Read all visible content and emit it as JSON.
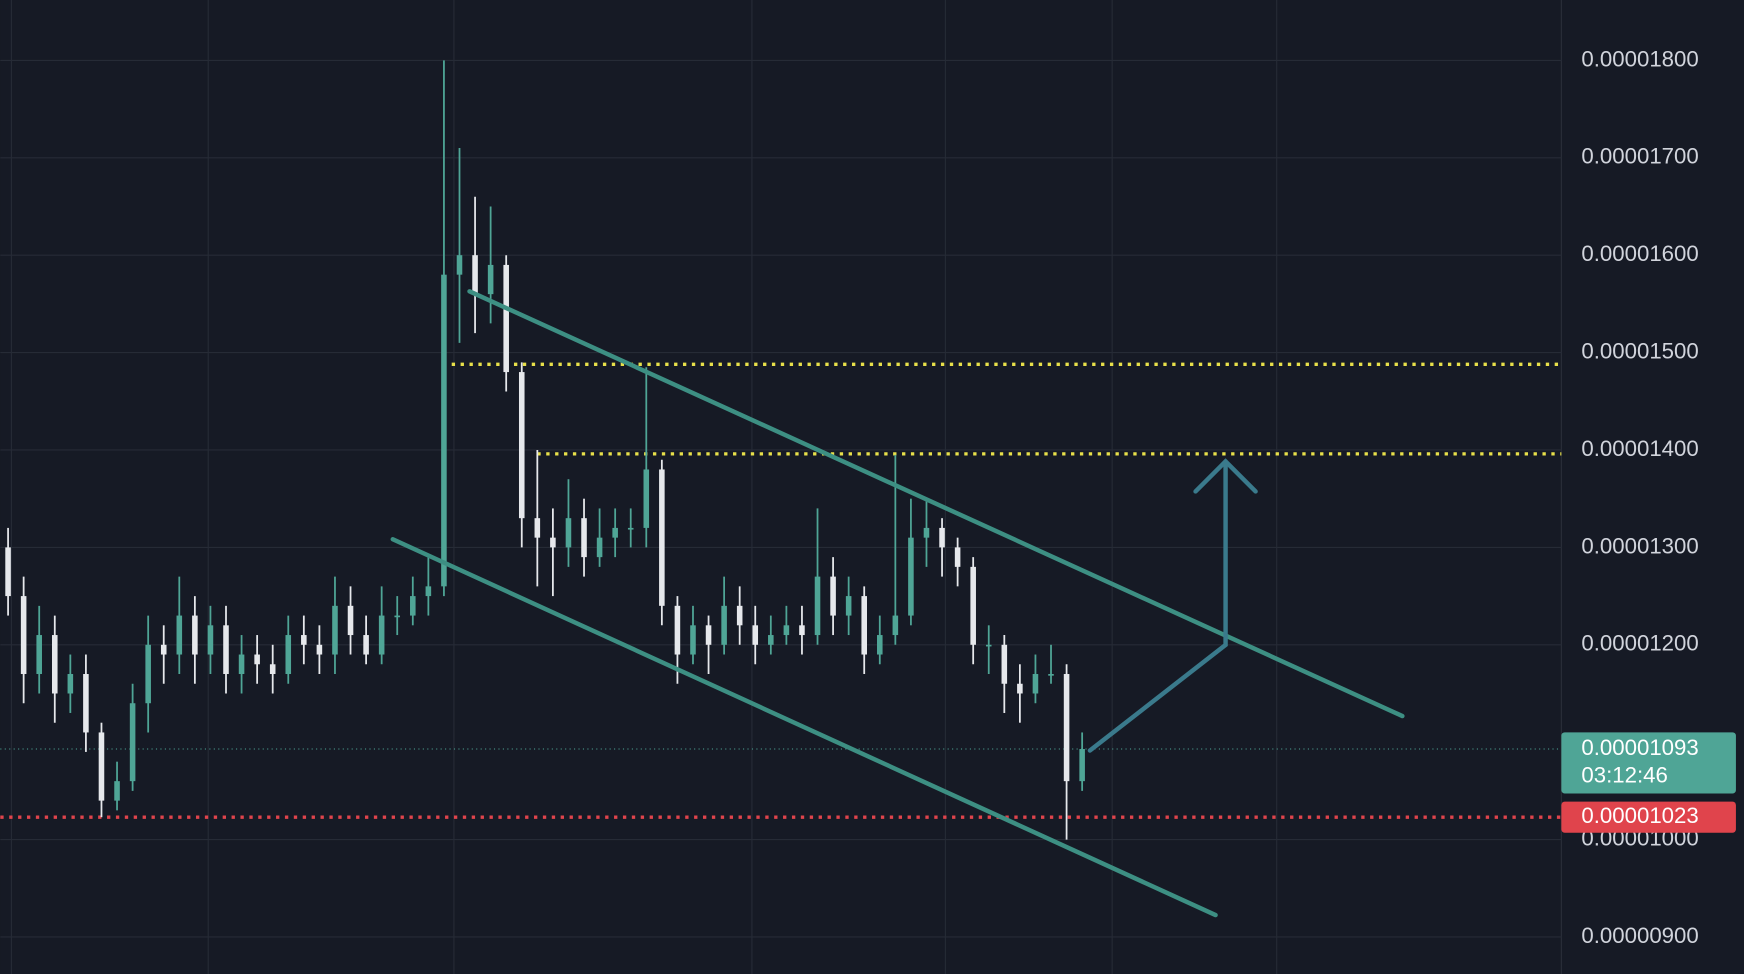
{
  "chart_data": {
    "type": "candlestick",
    "open": [
      1.3e-05,
      1.25e-05,
      1.17e-05,
      1.21e-05,
      1.15e-05,
      1.17e-05,
      1.11e-05,
      1.04e-05,
      1.06e-05,
      1.14e-05,
      1.2e-05,
      1.19e-05,
      1.23e-05,
      1.19e-05,
      1.22e-05,
      1.17e-05,
      1.19e-05,
      1.18e-05,
      1.17e-05,
      1.21e-05,
      1.2e-05,
      1.19e-05,
      1.24e-05,
      1.21e-05,
      1.19e-05,
      1.23e-05,
      1.23e-05,
      1.25e-05,
      1.26e-05,
      1.58e-05,
      1.6e-05,
      1.56e-05,
      1.59e-05,
      1.48e-05,
      1.33e-05,
      1.31e-05,
      1.3e-05,
      1.33e-05,
      1.29e-05,
      1.31e-05,
      1.32e-05,
      1.32e-05,
      1.38e-05,
      1.24e-05,
      1.19e-05,
      1.22e-05,
      1.2e-05,
      1.24e-05,
      1.22e-05,
      1.2e-05,
      1.21e-05,
      1.22e-05,
      1.21e-05,
      1.27e-05,
      1.23e-05,
      1.25e-05,
      1.19e-05,
      1.21e-05,
      1.23e-05,
      1.31e-05,
      1.32e-05,
      1.3e-05,
      1.28e-05,
      1.2e-05,
      1.2e-05,
      1.16e-05,
      1.15e-05,
      1.17e-05,
      1.17e-05,
      1.06e-05
    ],
    "high": [
      1.32e-05,
      1.27e-05,
      1.24e-05,
      1.23e-05,
      1.19e-05,
      1.19e-05,
      1.12e-05,
      1.08e-05,
      1.16e-05,
      1.23e-05,
      1.22e-05,
      1.27e-05,
      1.25e-05,
      1.24e-05,
      1.24e-05,
      1.21e-05,
      1.21e-05,
      1.2e-05,
      1.23e-05,
      1.23e-05,
      1.22e-05,
      1.27e-05,
      1.26e-05,
      1.23e-05,
      1.26e-05,
      1.25e-05,
      1.27e-05,
      1.29e-05,
      1.8e-05,
      1.71e-05,
      1.66e-05,
      1.65e-05,
      1.6e-05,
      1.49e-05,
      1.4e-05,
      1.34e-05,
      1.37e-05,
      1.35e-05,
      1.34e-05,
      1.34e-05,
      1.34e-05,
      1.485e-05,
      1.39e-05,
      1.25e-05,
      1.24e-05,
      1.23e-05,
      1.27e-05,
      1.26e-05,
      1.24e-05,
      1.23e-05,
      1.24e-05,
      1.24e-05,
      1.34e-05,
      1.29e-05,
      1.27e-05,
      1.26e-05,
      1.23e-05,
      1.395e-05,
      1.35e-05,
      1.35e-05,
      1.33e-05,
      1.31e-05,
      1.29e-05,
      1.22e-05,
      1.21e-05,
      1.18e-05,
      1.19e-05,
      1.2e-05,
      1.18e-05,
      1.11e-05
    ],
    "low": [
      1.23e-05,
      1.14e-05,
      1.15e-05,
      1.12e-05,
      1.13e-05,
      1.09e-05,
      1.023e-05,
      1.03e-05,
      1.05e-05,
      1.11e-05,
      1.16e-05,
      1.17e-05,
      1.16e-05,
      1.17e-05,
      1.15e-05,
      1.15e-05,
      1.16e-05,
      1.15e-05,
      1.16e-05,
      1.18e-05,
      1.17e-05,
      1.17e-05,
      1.19e-05,
      1.18e-05,
      1.18e-05,
      1.21e-05,
      1.22e-05,
      1.23e-05,
      1.25e-05,
      1.51e-05,
      1.52e-05,
      1.53e-05,
      1.46e-05,
      1.3e-05,
      1.26e-05,
      1.25e-05,
      1.28e-05,
      1.27e-05,
      1.28e-05,
      1.29e-05,
      1.3e-05,
      1.3e-05,
      1.22e-05,
      1.16e-05,
      1.18e-05,
      1.17e-05,
      1.19e-05,
      1.2e-05,
      1.18e-05,
      1.19e-05,
      1.2e-05,
      1.19e-05,
      1.2e-05,
      1.21e-05,
      1.21e-05,
      1.17e-05,
      1.18e-05,
      1.2e-05,
      1.22e-05,
      1.28e-05,
      1.27e-05,
      1.26e-05,
      1.18e-05,
      1.17e-05,
      1.13e-05,
      1.12e-05,
      1.14e-05,
      1.16e-05,
      1e-05,
      1.05e-05
    ],
    "close": [
      1.25e-05,
      1.17e-05,
      1.21e-05,
      1.15e-05,
      1.17e-05,
      1.11e-05,
      1.04e-05,
      1.06e-05,
      1.14e-05,
      1.2e-05,
      1.19e-05,
      1.23e-05,
      1.19e-05,
      1.22e-05,
      1.17e-05,
      1.19e-05,
      1.18e-05,
      1.17e-05,
      1.21e-05,
      1.2e-05,
      1.19e-05,
      1.24e-05,
      1.21e-05,
      1.19e-05,
      1.23e-05,
      1.23e-05,
      1.25e-05,
      1.26e-05,
      1.58e-05,
      1.6e-05,
      1.56e-05,
      1.59e-05,
      1.48e-05,
      1.33e-05,
      1.31e-05,
      1.3e-05,
      1.33e-05,
      1.29e-05,
      1.31e-05,
      1.32e-05,
      1.32e-05,
      1.38e-05,
      1.24e-05,
      1.19e-05,
      1.22e-05,
      1.2e-05,
      1.24e-05,
      1.22e-05,
      1.2e-05,
      1.21e-05,
      1.22e-05,
      1.21e-05,
      1.27e-05,
      1.23e-05,
      1.25e-05,
      1.19e-05,
      1.21e-05,
      1.23e-05,
      1.31e-05,
      1.32e-05,
      1.3e-05,
      1.28e-05,
      1.2e-05,
      1.2e-05,
      1.16e-05,
      1.15e-05,
      1.17e-05,
      1.17e-05,
      1.06e-05,
      1.093e-05
    ],
    "up_color": "#4fa596",
    "down_color": "#e6e8ec",
    "ylim": [
      8.62e-06,
      1.862e-05
    ],
    "yticks": [
      {
        "value": 1.8e-05,
        "label": "0.00001800"
      },
      {
        "value": 1.7e-05,
        "label": "0.00001700"
      },
      {
        "value": 1.6e-05,
        "label": "0.00001600"
      },
      {
        "value": 1.5e-05,
        "label": "0.00001500"
      },
      {
        "value": 1.4e-05,
        "label": "0.00001400"
      },
      {
        "value": 1.3e-05,
        "label": "0.00001300"
      },
      {
        "value": 1.2e-05,
        "label": "0.00001200"
      },
      {
        "value": 1e-05,
        "label": "0.00001000"
      },
      {
        "value": 9e-06,
        "label": "0.00000900"
      }
    ],
    "grid": true,
    "levels": [
      {
        "value": 1.488e-05,
        "color": "#e8e04a"
      },
      {
        "value": 1.396e-05,
        "color": "#e8e04a"
      }
    ],
    "support": {
      "value": 1.023e-05,
      "label": "0.00001023",
      "color": "#e0444c"
    },
    "last_price": {
      "value": 1.093e-05,
      "label": "0.00001093",
      "countdown": "03:12:46",
      "color": "#4fa596"
    }
  }
}
